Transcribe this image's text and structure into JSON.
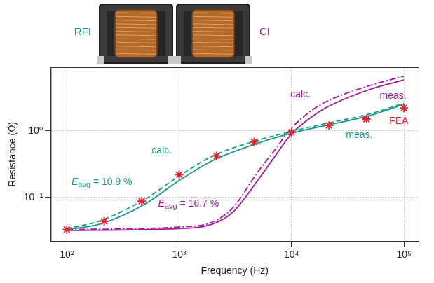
{
  "chart_data": {
    "type": "line",
    "x_label": "Frequency (Hz)",
    "y_label": "Resistance (Ω)",
    "log": true,
    "grid": true,
    "xlim": [
      72,
      135000
    ],
    "xticks": [
      {
        "value": 100,
        "label": "10²"
      },
      {
        "value": 1000,
        "label": "10³"
      },
      {
        "value": 10000,
        "label": "10⁴"
      },
      {
        "value": 100000,
        "label": "10⁵"
      }
    ],
    "ylim": [
      0.022,
      9
    ],
    "yticks": [
      {
        "value": 0.1,
        "label": "10⁻¹"
      },
      {
        "value": 1,
        "label": "10⁰"
      }
    ],
    "inset_labels": [
      {
        "text": "RFI",
        "color": "#1a9a8c"
      },
      {
        "text": "CI",
        "color": "#a21a9c"
      }
    ],
    "series": [
      {
        "type": "line",
        "color": "#1a9a8c",
        "line_style": "solid",
        "marker": "none",
        "x": [
          100,
          200,
          500,
          1000,
          2000,
          5000,
          10000,
          20000,
          50000,
          100000
        ],
        "values": [
          0.033,
          0.04,
          0.08,
          0.18,
          0.36,
          0.65,
          0.92,
          1.2,
          1.7,
          2.5
        ]
      },
      {
        "type": "line",
        "color": "#1a9a8c",
        "line_style": "dashed",
        "marker": "none",
        "x": [
          100,
          200,
          500,
          1000,
          2000,
          5000,
          10000,
          20000,
          50000,
          100000
        ],
        "values": [
          0.034,
          0.045,
          0.095,
          0.21,
          0.42,
          0.72,
          0.98,
          1.28,
          1.8,
          2.6
        ]
      },
      {
        "type": "line",
        "color": "#a21a9c",
        "line_style": "solid",
        "marker": "none",
        "x": [
          100,
          1000,
          2000,
          3000,
          5000,
          7000,
          10000,
          15000,
          20000,
          50000,
          100000
        ],
        "values": [
          0.032,
          0.034,
          0.04,
          0.06,
          0.18,
          0.4,
          0.9,
          1.6,
          2.2,
          4.2,
          5.8
        ]
      },
      {
        "type": "line",
        "color": "#a21a9c",
        "line_style": "dashdot",
        "marker": "none",
        "x": [
          100,
          1000,
          2000,
          3000,
          5000,
          7000,
          10000,
          15000,
          20000,
          50000,
          100000
        ],
        "values": [
          0.033,
          0.036,
          0.043,
          0.07,
          0.24,
          0.5,
          1.1,
          2.0,
          2.7,
          4.8,
          6.6
        ]
      },
      {
        "type": "scatter",
        "color": "#e8202a",
        "line_style": "none",
        "marker": "star",
        "x": [
          100,
          215,
          464,
          1000,
          2154,
          4642,
          10000,
          21544,
          46416,
          100000
        ],
        "values": [
          0.033,
          0.044,
          0.088,
          0.22,
          0.42,
          0.68,
          0.95,
          1.2,
          1.5,
          2.2
        ]
      }
    ],
    "annotations": [
      {
        "text": "calc.",
        "x": 700,
        "y": 0.5,
        "color": "#1a9a8c",
        "align": "center"
      },
      {
        "text": "meas.",
        "x": 40000,
        "y": 0.85,
        "color": "#1a9a8c",
        "align": "center"
      },
      {
        "text": "calc.",
        "x": 12000,
        "y": 3.5,
        "color": "#a21a9c",
        "align": "center"
      },
      {
        "text": "meas.",
        "x": 80000,
        "y": 3.3,
        "color": "#a21a9c",
        "align": "center"
      },
      {
        "text": "FEA",
        "x": 90000,
        "y": 1.4,
        "color": "#e8202a",
        "align": "center"
      },
      {
        "text": "E",
        "subscript": "avg",
        "suffix": " = 10.9 %",
        "x": 110,
        "y": 0.17,
        "color": "#1a9a8c",
        "align": "left"
      },
      {
        "text": "E",
        "subscript": "avg",
        "suffix": " = 16.7 %",
        "x": 650,
        "y": 0.08,
        "color": "#a21a9c",
        "align": "left"
      }
    ]
  }
}
